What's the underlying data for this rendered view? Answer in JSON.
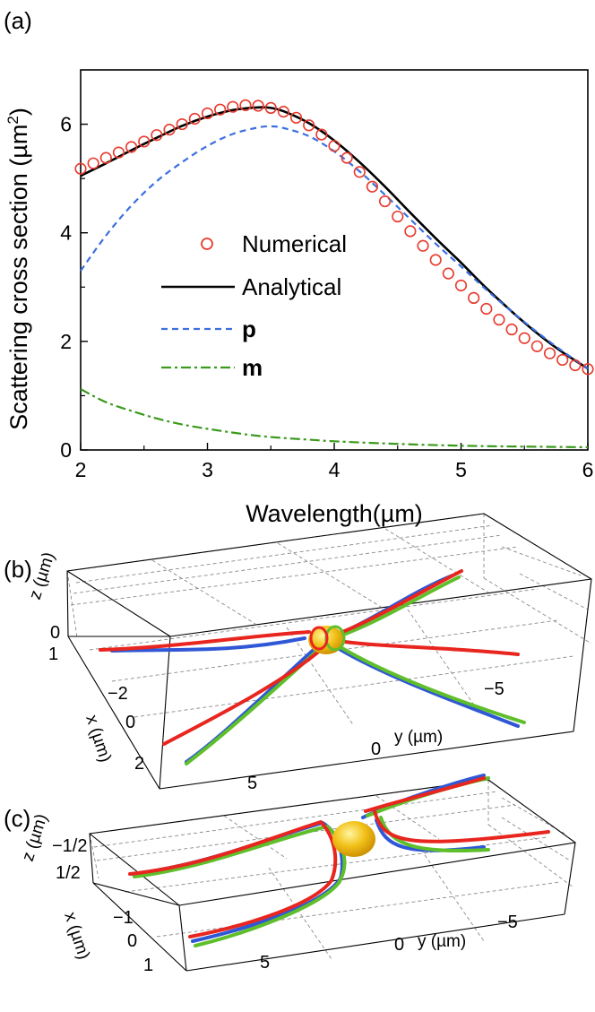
{
  "panels": {
    "a": "(a)",
    "b": "(b)",
    "c": "(c)"
  },
  "chart_data": [
    {
      "type": "line",
      "xlabel": "Wavelength(µm)",
      "ylabel_main": "Scattering cross section (",
      "ylabel_unit": "µm",
      "ylabel_sup": "2",
      "ylabel_close": ")",
      "xlim": [
        2,
        6
      ],
      "ylim": [
        0,
        7
      ],
      "xticks": [
        2,
        3,
        4,
        5,
        6
      ],
      "yticks": [
        0,
        2,
        4,
        6
      ],
      "legend_position": "center-left",
      "series": [
        {
          "name": "Numerical",
          "style": "markers",
          "color": "#e83a2e",
          "x": [
            2.0,
            2.1,
            2.2,
            2.3,
            2.4,
            2.5,
            2.6,
            2.7,
            2.8,
            2.9,
            3.0,
            3.1,
            3.2,
            3.3,
            3.4,
            3.5,
            3.6,
            3.7,
            3.8,
            3.9,
            4.0,
            4.1,
            4.2,
            4.3,
            4.4,
            4.5,
            4.6,
            4.7,
            4.8,
            4.9,
            5.0,
            5.1,
            5.2,
            5.3,
            5.4,
            5.5,
            5.6,
            5.7,
            5.8,
            5.9,
            6.0
          ],
          "values": [
            5.18,
            5.28,
            5.38,
            5.48,
            5.58,
            5.68,
            5.8,
            5.9,
            6.0,
            6.1,
            6.2,
            6.27,
            6.32,
            6.35,
            6.34,
            6.3,
            6.23,
            6.12,
            5.98,
            5.81,
            5.6,
            5.38,
            5.12,
            4.85,
            4.58,
            4.3,
            4.03,
            3.76,
            3.5,
            3.25,
            3.03,
            2.8,
            2.6,
            2.4,
            2.22,
            2.06,
            1.91,
            1.78,
            1.66,
            1.56,
            1.49
          ]
        },
        {
          "name": "Analytical",
          "style": "solid",
          "color": "#000000",
          "x": [
            2.0,
            2.2,
            2.4,
            2.6,
            2.8,
            3.0,
            3.2,
            3.4,
            3.5,
            3.6,
            3.8,
            4.0,
            4.2,
            4.4,
            4.6,
            4.8,
            5.0,
            5.2,
            5.4,
            5.6,
            5.8,
            6.0
          ],
          "values": [
            5.05,
            5.28,
            5.52,
            5.75,
            5.97,
            6.14,
            6.26,
            6.31,
            6.3,
            6.24,
            6.02,
            5.7,
            5.3,
            4.85,
            4.37,
            3.9,
            3.45,
            2.98,
            2.55,
            2.15,
            1.8,
            1.5
          ]
        },
        {
          "name": "p",
          "style": "dashed",
          "color": "#3b6fe0",
          "x": [
            2.0,
            2.2,
            2.4,
            2.6,
            2.8,
            3.0,
            3.2,
            3.4,
            3.5,
            3.6,
            3.8,
            4.0,
            4.2,
            4.4,
            4.6,
            4.8,
            5.0,
            5.2,
            5.4,
            5.6,
            5.8,
            6.0
          ],
          "values": [
            3.3,
            3.95,
            4.5,
            4.95,
            5.3,
            5.6,
            5.82,
            5.94,
            5.96,
            5.93,
            5.78,
            5.5,
            5.13,
            4.7,
            4.25,
            3.8,
            3.38,
            2.95,
            2.55,
            2.17,
            1.82,
            1.5
          ]
        },
        {
          "name": "m",
          "style": "dashdot",
          "color": "#3a9a1c",
          "x": [
            2.0,
            2.2,
            2.4,
            2.6,
            2.8,
            3.0,
            3.2,
            3.4,
            3.6,
            3.8,
            4.0,
            4.4,
            4.8,
            5.2,
            5.6,
            6.0
          ],
          "values": [
            1.12,
            0.88,
            0.72,
            0.58,
            0.47,
            0.39,
            0.32,
            0.26,
            0.22,
            0.19,
            0.16,
            0.12,
            0.09,
            0.07,
            0.06,
            0.05
          ]
        }
      ]
    }
  ],
  "panel_b": {
    "z_label": "z (µm)",
    "x_label": "x (µm)",
    "y_label": "y (µm)",
    "z_ticks": [
      "0",
      "1"
    ],
    "x_ticks": [
      "−2",
      "0",
      "2"
    ],
    "y_ticks": [
      "5",
      "0",
      "−5"
    ]
  },
  "panel_c": {
    "z_label": "z (µm)",
    "x_label": "x (µm)",
    "y_label": "y (µm)",
    "z_ticks": [
      "−1/2",
      "1/2"
    ],
    "x_ticks": [
      "−1",
      "0",
      "1"
    ],
    "y_ticks": [
      "5",
      "0",
      "−5"
    ]
  },
  "trajectory_colors": [
    "#e8251e",
    "#2f57d6",
    "#5fbf2a"
  ]
}
